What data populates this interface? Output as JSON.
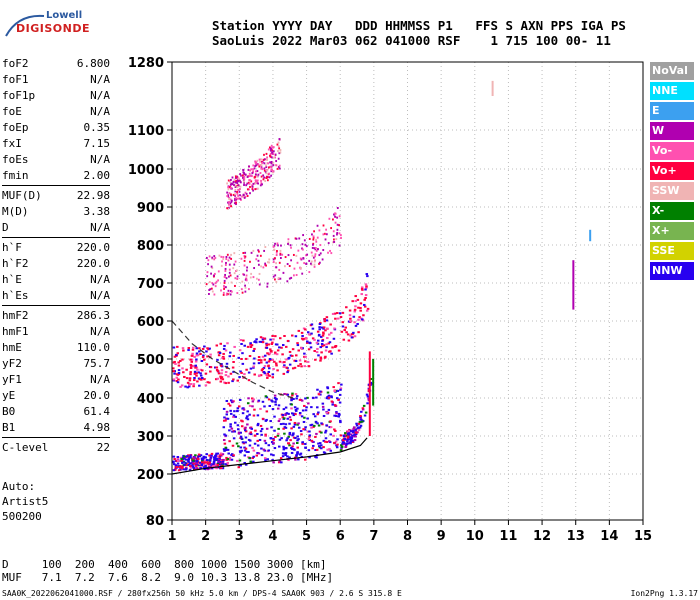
{
  "logo": {
    "line1": "Lowell",
    "line2": "DIGISONDE"
  },
  "header": {
    "labels": "Station YYYY DAY   DDD HHMMSS P1   FFS S AXN PPS IGA PS",
    "values": "SaoLuis 2022 Mar03 062 041000 RSF    1 715 100 00- 11"
  },
  "params": [
    {
      "name": "foF2",
      "value": "6.800"
    },
    {
      "name": "foF1",
      "value": "N/A"
    },
    {
      "name": "foF1p",
      "value": "N/A"
    },
    {
      "name": "foE",
      "value": "N/A"
    },
    {
      "name": "foEp",
      "value": "0.35"
    },
    {
      "name": "fxI",
      "value": "7.15"
    },
    {
      "name": "foEs",
      "value": "N/A"
    },
    {
      "name": "fmin",
      "value": "2.00"
    },
    {
      "name": "MUF(D)",
      "value": "22.98",
      "sep": true
    },
    {
      "name": "M(D)",
      "value": "3.38"
    },
    {
      "name": "D",
      "value": "N/A"
    },
    {
      "name": "h`F",
      "value": "220.0",
      "sep": true
    },
    {
      "name": "h`F2",
      "value": "220.0"
    },
    {
      "name": "h`E",
      "value": "N/A"
    },
    {
      "name": "h`Es",
      "value": "N/A"
    },
    {
      "name": "hmF2",
      "value": "286.3",
      "sep": true
    },
    {
      "name": "hmF1",
      "value": "N/A"
    },
    {
      "name": "hmE",
      "value": "110.0"
    },
    {
      "name": "yF2",
      "value": "75.7"
    },
    {
      "name": "yF1",
      "value": "N/A"
    },
    {
      "name": "yE",
      "value": "20.0"
    },
    {
      "name": "B0",
      "value": "61.4"
    },
    {
      "name": "B1",
      "value": "4.98"
    },
    {
      "name": "C-level",
      "value": "22",
      "sep": true
    }
  ],
  "autoscaling": {
    "line1": "Auto:",
    "line2": "Artist5",
    "line3": "500200"
  },
  "legend": [
    {
      "label": "NoVal",
      "color": "#a0a0a0"
    },
    {
      "label": "NNE",
      "color": "#00e0ff"
    },
    {
      "label": "E",
      "color": "#3ca0f0"
    },
    {
      "label": "W",
      "color": "#b000b0"
    },
    {
      "label": "Vo-",
      "color": "#ff50b0"
    },
    {
      "label": "Vo+",
      "color": "#ff0040"
    },
    {
      "label": "SSW",
      "color": "#f0b4b4"
    },
    {
      "label": "X-",
      "color": "#008000"
    },
    {
      "label": "X+",
      "color": "#78b450"
    },
    {
      "label": "SSE",
      "color": "#d2d200"
    },
    {
      "label": "NNW",
      "color": "#2800f0"
    }
  ],
  "muf_table": {
    "d_label": "D",
    "d_values": [
      "100",
      "200",
      "400",
      "600",
      "800",
      "1000",
      "1500",
      "3000"
    ],
    "d_unit": "[km]",
    "muf_label": "MUF",
    "muf_values": [
      "7.1",
      "7.2",
      "7.6",
      "8.2",
      "9.0",
      "10.3",
      "13.8",
      "23.0"
    ],
    "muf_unit": "[MHz]"
  },
  "footer": {
    "left": "SAA0K_2022062041000.RSF / 280fx256h 50 kHz 5.0 km / DPS-4 SAA0K 903 / 2.6 S 315.8 E",
    "right": "Ion2Png 1.3.17"
  },
  "chart_data": {
    "type": "scatter",
    "xlim": [
      1,
      15
    ],
    "ylim": [
      80,
      1280
    ],
    "x_ticks": [
      1,
      2,
      3,
      4,
      5,
      6,
      7,
      8,
      9,
      10,
      11,
      12,
      13,
      14,
      15
    ],
    "y_ticks": [
      80,
      200,
      300,
      400,
      500,
      600,
      700,
      800,
      900,
      1000,
      1100,
      1280
    ],
    "grid": "dotted",
    "traces": [
      {
        "name": "F2 trace",
        "x": [
          1.0,
          1.5,
          2.0,
          3.0,
          4.0,
          5.0,
          5.6,
          6.0,
          6.3,
          6.6,
          6.8
        ],
        "y": [
          440,
          445,
          450,
          460,
          470,
          495,
          520,
          540,
          560,
          600,
          650
        ]
      },
      {
        "name": "F 2-hop",
        "x": [
          2.0,
          3.0,
          4.0,
          5.0,
          5.6,
          6.0
        ],
        "y": [
          680,
          690,
          710,
          740,
          780,
          820
        ]
      },
      {
        "name": "F 3-hop",
        "x": [
          2.6,
          3.5,
          4.2
        ],
        "y": [
          910,
          960,
          1020
        ]
      },
      {
        "name": "Low trace",
        "x": [
          1.0,
          2.0,
          3.0,
          4.0,
          5.0,
          5.5,
          6.0,
          6.4,
          6.7,
          6.9
        ],
        "y": [
          220,
          225,
          230,
          240,
          250,
          260,
          275,
          300,
          360,
          440
        ]
      }
    ],
    "profile_solid": {
      "x": [
        1.0,
        2.0,
        3.0,
        4.0,
        5.0,
        6.0,
        6.6,
        6.8
      ],
      "y": [
        200,
        215,
        225,
        235,
        245,
        258,
        275,
        295
      ]
    },
    "profile_dashed": {
      "x": [
        1.0,
        1.6,
        2.2,
        2.8,
        3.4,
        4.0,
        4.6
      ],
      "y": [
        600,
        540,
        500,
        470,
        440,
        415,
        400
      ]
    }
  }
}
